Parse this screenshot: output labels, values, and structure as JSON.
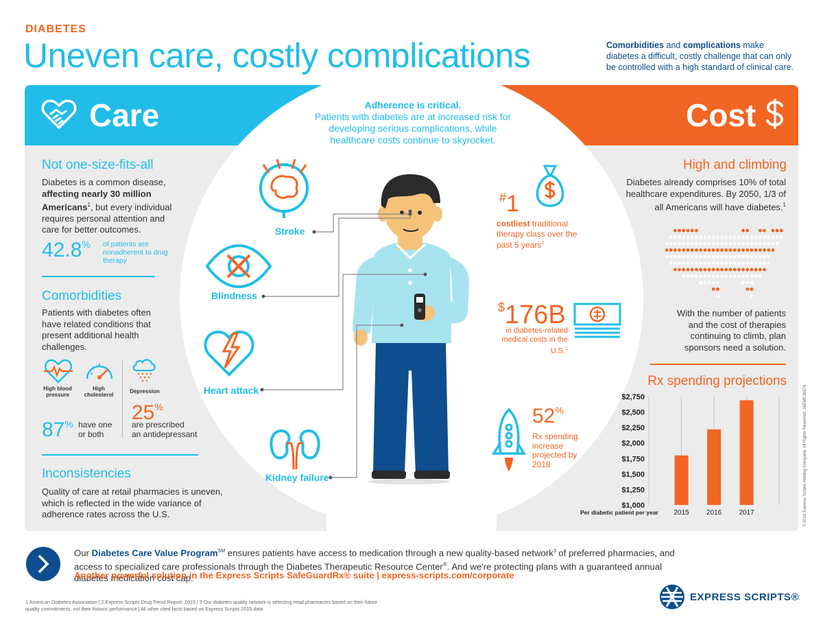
{
  "header": {
    "eyebrow": "DIABETES",
    "title": "Uneven care, costly complications",
    "intro_b1": "Comorbidities",
    "intro_t1": " and ",
    "intro_b2": "complications",
    "intro_t2": " make diabetes a difficult, costly challenge that can only be controlled with a high standard of clinical care."
  },
  "care": {
    "label": "Care",
    "not_one": {
      "heading": "Not one-size-fits-all",
      "t1": "Diabetes is a common disease, ",
      "b1": "affecting nearly 30 million Americans",
      "sup1": "1",
      "t2": ", but every individual requires personal attention and care for better outcomes.",
      "stat": "42.8",
      "stat_unit": "%",
      "stat_label": "of patients are nonadherent to drug therapy"
    },
    "comorbidities": {
      "heading": "Comorbidities",
      "text": "Patients with diabetes often have related conditions that present additional health challenges.",
      "icon_labels": [
        "High blood pressure",
        "High cholesterol",
        "Depression"
      ],
      "stat_a": "87",
      "stat_a_unit": "%",
      "stat_a_l1": "have one",
      "stat_a_l2": "or both",
      "stat_b": "25",
      "stat_b_unit": "%",
      "stat_b_l1": "are prescribed",
      "stat_b_l2": "an antidepressant"
    },
    "inconsistencies": {
      "heading": "Inconsistencies",
      "text": "Quality of care at retail pharmacies is uneven, which is reflected in the wide variance of adherence rates across the U.S."
    }
  },
  "center": {
    "heading": "Adherence is critical.",
    "text": "Patients with diabetes are at increased risk for developing serious complications, while healthcare costs continue to skyrocket.",
    "conditions": [
      "Stroke",
      "Blindness",
      "Heart attack",
      "Kidney failure"
    ]
  },
  "cost": {
    "label": "Cost",
    "high": {
      "heading": "High and climbing",
      "text": "Diabetes already comprises 10% of total healthcare expenditures. By 2050, 1/3 of all Americans will have diabetes.",
      "sup": "1"
    },
    "solution_text": "With the number of patients and the cost of therapies continuing to climb, plan sponsors need a solution.",
    "stat1_prefix": "#",
    "stat1_num": "1",
    "stat1_bold": "costliest",
    "stat1_text": " traditional therapy class over the past 5 years",
    "stat1_sup": "2",
    "stat176_prefix": "$",
    "stat176_num": "176B",
    "stat176_text": "in diabetes-related medical costs in the U.S.",
    "stat176_sup": "1",
    "stat52_num": "52",
    "stat52_unit": "%",
    "stat52_text": "Rx spending increase projected by 2018",
    "rx_heading": "Rx spending projections"
  },
  "chart_data": {
    "type": "bar",
    "title": "Rx spending projections",
    "xlabel": "Per diabetic patient per year",
    "categories": [
      "2015",
      "2016",
      "2017"
    ],
    "values": [
      1800,
      2220,
      2690
    ],
    "ylim": [
      1000,
      2750
    ],
    "yticks": [
      1000,
      1250,
      1500,
      1750,
      2000,
      2250,
      2500,
      2750
    ],
    "ytick_labels": [
      "$1,000",
      "$1,250",
      "$1,500",
      "$1,750",
      "$2,000",
      "$2,250",
      "$2,500",
      "$2,750"
    ],
    "bar_color": "#f26522",
    "grid": "vertical lines"
  },
  "footer": {
    "t1": "Our ",
    "b1": "Diabetes Care Value Program",
    "sm": "SM",
    "t2": " ensures patients have access to medication through a new quality-based network",
    "sup3": "3",
    "t3": " of preferred pharmacies, and access to specialized care professionals through the Diabetes Therapeutic Resource Center",
    "reg": "®",
    "t4": ". And we're protecting plans with a guaranteed annual diabetes medication cost cap.",
    "link": "Another powerful solution in the Express Scripts SafeGuardRx® suite  |  express-scripts.com/corporate",
    "footnote": "1 American Diabetes Association | 2 Express Scripts Drug Trend Report, 2015 | 3 Our diabetes quality network is selecting retail pharmacies based on their future quality commitments, not their historic performance | All other cited facts based on Express Scripts 2015 data",
    "brand": "EXPRESS SCRIPTS®",
    "legal": "© 2016 Express Scripts Holding Company. All Rights Reserved. 16EME36574"
  },
  "colors": {
    "care_blue": "#21bde8",
    "cost_orange": "#f26522",
    "navy": "#0e4e8e",
    "panel_grey": "#ececec"
  }
}
